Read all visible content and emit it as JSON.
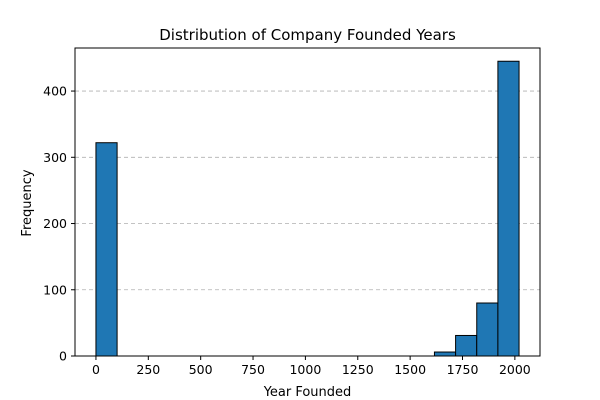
{
  "chart_data": {
    "type": "bar",
    "title": "Distribution of Company Founded Years",
    "xlabel": "Year Founded",
    "ylabel": "Frequency",
    "xlim": [
      -100,
      2120
    ],
    "ylim": [
      0,
      465
    ],
    "x_ticks": [
      0,
      250,
      500,
      750,
      1000,
      1250,
      1500,
      1750,
      2000
    ],
    "y_ticks": [
      0,
      100,
      200,
      300,
      400
    ],
    "bin_edges": [
      0,
      101,
      202,
      303,
      404,
      505,
      606,
      707,
      808,
      909,
      1010,
      1111,
      1212,
      1313,
      1414,
      1515,
      1616,
      1717,
      1818,
      1919,
      2020
    ],
    "values": [
      322,
      0,
      0,
      0,
      0,
      0,
      0,
      0,
      0,
      0,
      0,
      0,
      0,
      0,
      0,
      0,
      6,
      31,
      80,
      445
    ],
    "grid": "y-dashed",
    "bar_color": "#1f77b4",
    "edge_color": "#000000"
  }
}
